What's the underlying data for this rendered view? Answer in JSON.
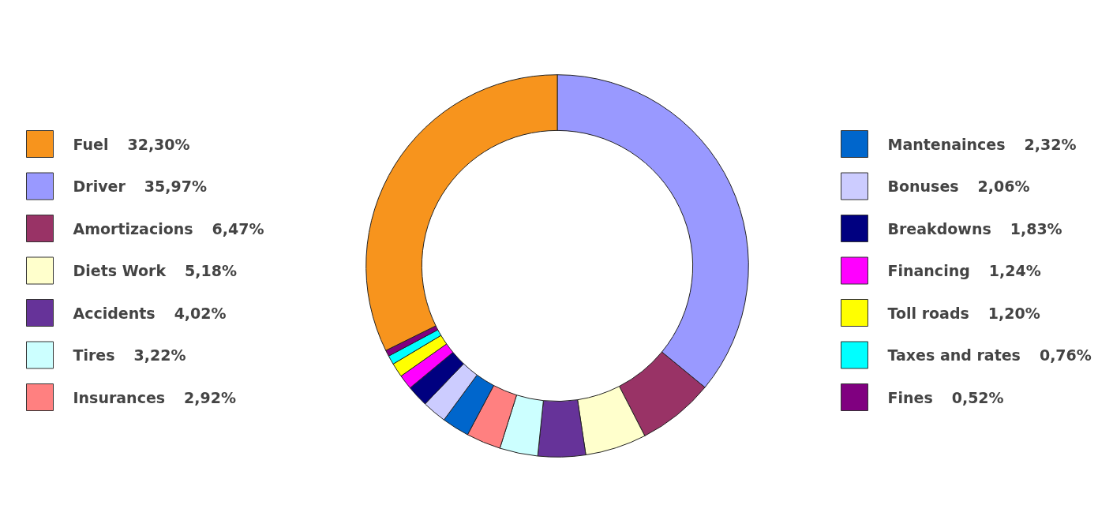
{
  "chart_data": {
    "type": "donut",
    "categories": [
      "Fuel",
      "Driver",
      "Amortizacions",
      "Diets Work",
      "Accidents",
      "Tires",
      "Insurances",
      "Mantenainces",
      "Bonuses",
      "Breakdowns",
      "Financing",
      "Toll roads",
      "Taxes and rates",
      "Fines"
    ],
    "values": [
      32.3,
      35.97,
      6.47,
      5.18,
      4.02,
      3.22,
      2.92,
      2.32,
      2.06,
      1.83,
      1.24,
      1.2,
      0.76,
      0.52
    ],
    "value_labels": [
      "32,30%",
      "35,97%",
      "6,47%",
      "5,18%",
      "4,02%",
      "3,22%",
      "2,92%",
      "2,32%",
      "2,06%",
      "1,83%",
      "1,24%",
      "1,20%",
      "0,76%",
      "0,52%"
    ],
    "colors": [
      "#f7941d",
      "#9999ff",
      "#993366",
      "#ffffcc",
      "#663399",
      "#ccffff",
      "#ff8080",
      "#0066cc",
      "#ccccff",
      "#000080",
      "#ff00ff",
      "#ffff00",
      "#00ffff",
      "#800080"
    ],
    "legend": "left"
  }
}
